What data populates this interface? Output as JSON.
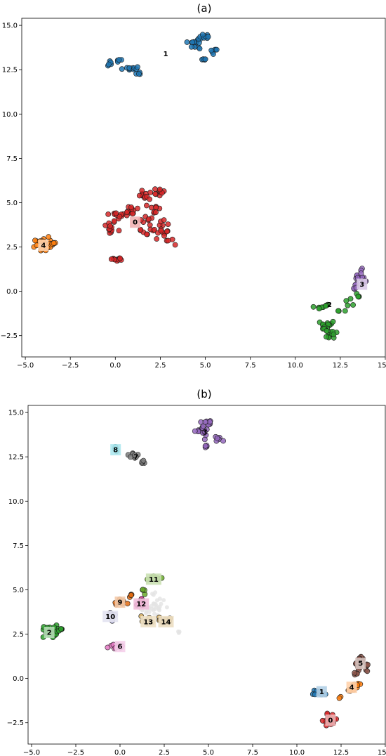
{
  "chart_data": [
    {
      "type": "scatter",
      "title": "(a)",
      "xlim": [
        -5.2,
        15.0
      ],
      "ylim": [
        -3.7,
        15.4
      ],
      "x_ticks": [
        {
          "value": -5.0,
          "label": "−5.0"
        },
        {
          "value": -2.5,
          "label": "−2.5"
        },
        {
          "value": 0.0,
          "label": "0.0"
        },
        {
          "value": 2.5,
          "label": "2.5"
        },
        {
          "value": 5.0,
          "label": "5.0"
        },
        {
          "value": 7.5,
          "label": "7.5"
        },
        {
          "value": 10.0,
          "label": "10.0"
        },
        {
          "value": 12.5,
          "label": "12.5"
        },
        {
          "value": 15.0,
          "label": "15.0"
        }
      ],
      "y_ticks": [
        {
          "value": -2.5,
          "label": "−2.5"
        },
        {
          "value": 0.0,
          "label": "0.0"
        },
        {
          "value": 2.5,
          "label": "2.5"
        },
        {
          "value": 5.0,
          "label": "5.0"
        },
        {
          "value": 7.5,
          "label": "7.5"
        },
        {
          "value": 10.0,
          "label": "10.0"
        },
        {
          "value": 12.5,
          "label": "12.5"
        },
        {
          "value": 15.0,
          "label": "15.0"
        }
      ],
      "grid": false,
      "clusters": [
        {
          "label": "0",
          "color": "#d62728",
          "label_pos": [
            1.1,
            3.9
          ],
          "label_box": true,
          "blobs": [
            [
              -0.3,
              3.6,
              0.3,
              0.4,
              14
            ],
            [
              0.1,
              4.3,
              0.45,
              0.2,
              10
            ],
            [
              0.9,
              4.5,
              0.5,
              0.3,
              12
            ],
            [
              1.7,
              3.7,
              0.35,
              0.5,
              12
            ],
            [
              1.8,
              5.4,
              0.4,
              0.35,
              12
            ],
            [
              2.4,
              5.6,
              0.4,
              0.2,
              10
            ],
            [
              2.5,
              3.6,
              0.5,
              0.45,
              16
            ],
            [
              2.2,
              4.6,
              0.3,
              0.35,
              8
            ],
            [
              2.9,
              2.9,
              0.25,
              0.2,
              4
            ],
            [
              3.35,
              2.6,
              0.05,
              0.05,
              1
            ],
            [
              0.0,
              1.8,
              0.5,
              0.12,
              10
            ]
          ]
        },
        {
          "label": "1",
          "color": "#1f77b4",
          "label_pos": [
            2.8,
            13.4
          ],
          "label_box": false,
          "blobs": [
            [
              -0.3,
              12.85,
              0.15,
              0.15,
              5
            ],
            [
              0.2,
              13.05,
              0.1,
              0.1,
              4
            ],
            [
              0.8,
              12.55,
              0.5,
              0.12,
              10
            ],
            [
              1.3,
              12.25,
              0.15,
              0.15,
              4
            ],
            [
              4.5,
              14.0,
              0.4,
              0.3,
              16
            ],
            [
              5.0,
              14.4,
              0.3,
              0.15,
              8
            ],
            [
              4.9,
              13.1,
              0.12,
              0.1,
              4
            ],
            [
              5.5,
              13.5,
              0.2,
              0.15,
              6
            ]
          ]
        },
        {
          "label": "2",
          "color": "#2ca02c",
          "label_pos": [
            11.9,
            -0.75
          ],
          "label_box": false,
          "blobs": [
            [
              11.3,
              -0.9,
              0.3,
              0.1,
              5
            ],
            [
              11.8,
              -0.8,
              0.15,
              0.1,
              3
            ],
            [
              12.4,
              -1.1,
              0.1,
              0.1,
              2
            ],
            [
              13.0,
              -0.6,
              0.25,
              0.2,
              5
            ],
            [
              13.5,
              -0.25,
              0.2,
              0.15,
              4
            ],
            [
              11.8,
              -1.9,
              0.3,
              0.25,
              12
            ],
            [
              12.0,
              -2.5,
              0.3,
              0.25,
              12
            ],
            [
              11.6,
              -2.2,
              0.2,
              0.2,
              5
            ]
          ]
        },
        {
          "label": "3",
          "color": "#9467bd",
          "label_pos": [
            13.7,
            0.4
          ],
          "label_box": true,
          "blobs": [
            [
              13.6,
              0.85,
              0.2,
              0.3,
              12
            ],
            [
              13.85,
              0.6,
              0.12,
              0.15,
              5
            ],
            [
              13.3,
              0.2,
              0.1,
              0.12,
              4
            ]
          ]
        },
        {
          "label": "4",
          "color": "#ff7f0e",
          "label_pos": [
            -4.0,
            2.6
          ],
          "label_box": true,
          "blobs": [
            [
              -4.0,
              2.65,
              0.35,
              0.3,
              28
            ],
            [
              -3.4,
              2.7,
              0.15,
              0.1,
              5
            ]
          ]
        }
      ]
    },
    {
      "type": "scatter",
      "title": "(b)",
      "xlim": [
        -5.2,
        15.0
      ],
      "ylim": [
        -3.7,
        15.4
      ],
      "x_ticks": [
        {
          "value": -5.0,
          "label": "−5.0"
        },
        {
          "value": -2.5,
          "label": "−2.5"
        },
        {
          "value": 0.0,
          "label": "0.0"
        },
        {
          "value": 2.5,
          "label": "2.5"
        },
        {
          "value": 5.0,
          "label": "5.0"
        },
        {
          "value": 7.5,
          "label": "7.5"
        },
        {
          "value": 10.0,
          "label": "10.0"
        },
        {
          "value": 12.5,
          "label": "12.5"
        },
        {
          "value": 15.0,
          "label": "15.0"
        }
      ],
      "y_ticks": [
        {
          "value": -2.5,
          "label": "−2.5"
        },
        {
          "value": 0.0,
          "label": "0.0"
        },
        {
          "value": 2.5,
          "label": "2.5"
        },
        {
          "value": 5.0,
          "label": "5.0"
        },
        {
          "value": 7.5,
          "label": "7.5"
        },
        {
          "value": 10.0,
          "label": "10.0"
        },
        {
          "value": 12.5,
          "label": "12.5"
        },
        {
          "value": 15.0,
          "label": "15.0"
        }
      ],
      "grid": false,
      "noise": {
        "color": "#e4e4e4",
        "blobs": [
          [
            1.9,
            4.0,
            0.6,
            0.7,
            40
          ],
          [
            3.3,
            2.6,
            0.08,
            0.08,
            3
          ]
        ]
      },
      "clusters": [
        {
          "label": "0",
          "color": "#d62728",
          "label_pos": [
            11.9,
            -2.35
          ],
          "label_box": true,
          "blobs": [
            [
              11.9,
              -2.3,
              0.35,
              0.3,
              24
            ]
          ]
        },
        {
          "label": "1",
          "color": "#1f77b4",
          "label_pos": [
            11.4,
            -0.75
          ],
          "label_box": true,
          "blobs": [
            [
              11.3,
              -0.8,
              0.35,
              0.12,
              10
            ]
          ]
        },
        {
          "label": "2",
          "color": "#2ca02c",
          "label_pos": [
            -4.0,
            2.6
          ],
          "label_box": true,
          "blobs": [
            [
              -4.0,
              2.65,
              0.35,
              0.3,
              28
            ],
            [
              -3.4,
              2.7,
              0.15,
              0.1,
              5
            ]
          ]
        },
        {
          "label": "3",
          "color": "#9467bd",
          "label_pos": [
            4.8,
            13.9
          ],
          "label_box": false,
          "blobs": [
            [
              4.6,
              14.0,
              0.35,
              0.3,
              16
            ],
            [
              5.0,
              14.4,
              0.25,
              0.15,
              8
            ],
            [
              4.9,
              13.1,
              0.12,
              0.1,
              4
            ],
            [
              5.5,
              13.5,
              0.2,
              0.15,
              6
            ]
          ]
        },
        {
          "label": "4",
          "color": "#ff7f0e",
          "label_pos": [
            13.1,
            -0.5
          ],
          "label_box": true,
          "blobs": [
            [
              13.0,
              -0.6,
              0.25,
              0.2,
              6
            ],
            [
              13.5,
              -0.3,
              0.2,
              0.15,
              5
            ],
            [
              12.4,
              -1.1,
              0.1,
              0.1,
              2
            ]
          ]
        },
        {
          "label": "5",
          "color": "#8c564b",
          "label_pos": [
            13.6,
            0.85
          ],
          "label_box": true,
          "blobs": [
            [
              13.6,
              0.9,
              0.2,
              0.3,
              14
            ],
            [
              13.85,
              0.6,
              0.12,
              0.15,
              5
            ],
            [
              13.3,
              0.2,
              0.1,
              0.12,
              4
            ]
          ]
        },
        {
          "label": "6",
          "color": "#e377c2",
          "label_pos": [
            0.0,
            1.8
          ],
          "label_box": true,
          "blobs": [
            [
              0.0,
              1.8,
              0.5,
              0.12,
              10
            ]
          ]
        },
        {
          "label": "7",
          "color": "#7f7f7f",
          "label_pos": [
            0.9,
            12.5
          ],
          "label_box": false,
          "blobs": [
            [
              0.8,
              12.55,
              0.35,
              0.12,
              8
            ],
            [
              1.3,
              12.25,
              0.15,
              0.15,
              5
            ]
          ]
        },
        {
          "label": "8",
          "color": "#17becf",
          "label_pos": [
            -0.25,
            12.9
          ],
          "label_box": true,
          "blobs": [
            [
              -0.2,
              12.9,
              0.15,
              0.15,
              6
            ]
          ]
        },
        {
          "label": "9",
          "color": "#e06a10",
          "label_pos": [
            0.0,
            4.3
          ],
          "label_box": true,
          "blobs": [
            [
              0.0,
              4.25,
              0.4,
              0.18,
              10
            ],
            [
              0.6,
              4.6,
              0.15,
              0.15,
              4
            ]
          ]
        },
        {
          "label": "10",
          "color": "#b0aed6",
          "label_pos": [
            -0.55,
            3.5
          ],
          "label_box": true,
          "blobs": [
            [
              -0.4,
              3.5,
              0.25,
              0.25,
              8
            ]
          ]
        },
        {
          "label": "11",
          "color": "#6aaa2a",
          "label_pos": [
            1.9,
            5.6
          ],
          "label_box": true,
          "blobs": [
            [
              1.9,
              5.65,
              0.4,
              0.15,
              10
            ],
            [
              1.4,
              5.0,
              0.15,
              0.15,
              4
            ]
          ]
        },
        {
          "label": "12",
          "color": "#d6489b",
          "label_pos": [
            1.2,
            4.2
          ],
          "label_box": true,
          "blobs": [
            [
              1.2,
              4.3,
              0.2,
              0.25,
              8
            ]
          ]
        },
        {
          "label": "13",
          "color": "#cfa85a",
          "label_pos": [
            1.6,
            3.2
          ],
          "label_box": true,
          "blobs": [
            [
              1.5,
              3.3,
              0.3,
              0.2,
              9
            ]
          ]
        },
        {
          "label": "14",
          "color": "#c9a052",
          "label_pos": [
            2.6,
            3.2
          ],
          "label_box": true,
          "blobs": [
            [
              2.6,
              3.3,
              0.35,
              0.15,
              9
            ]
          ]
        }
      ]
    }
  ]
}
